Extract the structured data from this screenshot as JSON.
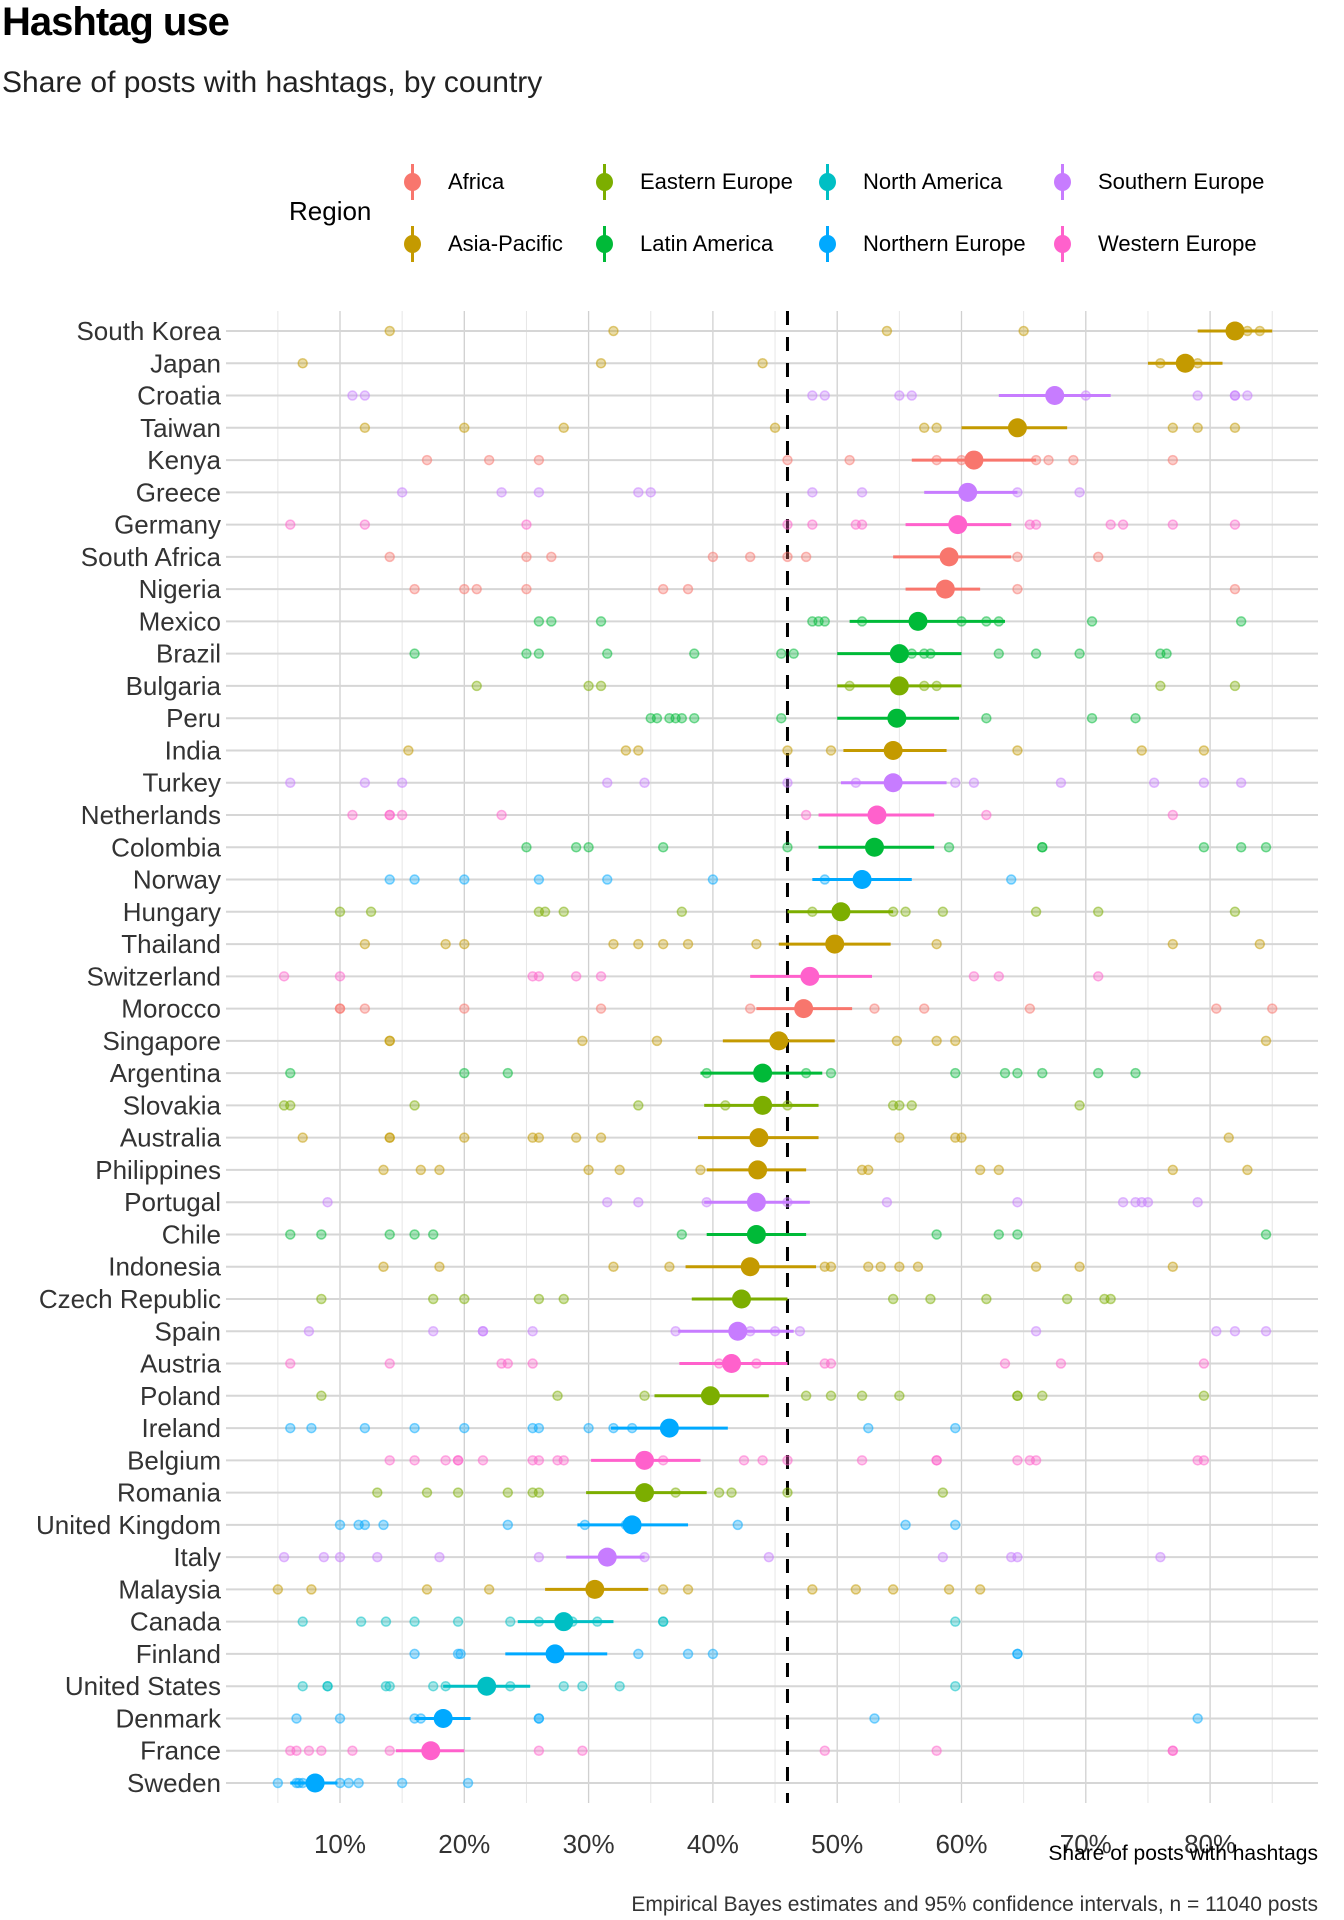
{
  "title": "Hashtag use",
  "subtitle": "Share of posts with hashtags, by country",
  "legend": {
    "title": "Region",
    "items": [
      {
        "label": "Africa",
        "color": "#F8766D"
      },
      {
        "label": "Asia-Pacific",
        "color": "#C49A00"
      },
      {
        "label": "Eastern Europe",
        "color": "#7CAE00"
      },
      {
        "label": "Latin America",
        "color": "#00BA38"
      },
      {
        "label": "North America",
        "color": "#00BFC4"
      },
      {
        "label": "Northern Europe",
        "color": "#00A9FF"
      },
      {
        "label": "Southern Europe",
        "color": "#C77CFF"
      },
      {
        "label": "Western Europe",
        "color": "#FF61CC"
      }
    ]
  },
  "xlabel": "Share of posts with hashtags",
  "caption": "Empirical Bayes estimates and 95% confidence intervals, n = 11040 posts",
  "chart_data": {
    "type": "scatter",
    "title": "Hashtag use",
    "subtitle": "Share of posts with hashtags, by country",
    "xlabel": "Share of posts with hashtags",
    "ylabel": "",
    "xlim": [
      0.04,
      0.86
    ],
    "xticks": [
      0.1,
      0.2,
      0.3,
      0.4,
      0.5,
      0.6,
      0.7,
      0.8
    ],
    "xtick_labels": [
      "10%",
      "20%",
      "30%",
      "40%",
      "50%",
      "60%",
      "70%",
      "80%"
    ],
    "reference_line": {
      "x": 0.46,
      "style": "dashed"
    },
    "grid": true,
    "legend_position": "top",
    "regions": {
      "Africa": "#F8766D",
      "Asia-Pacific": "#C49A00",
      "Eastern Europe": "#7CAE00",
      "Latin America": "#00BA38",
      "North America": "#00BFC4",
      "Northern Europe": "#00A9FF",
      "Southern Europe": "#C77CFF",
      "Western Europe": "#FF61CC"
    },
    "series": [
      {
        "country": "South Korea",
        "region": "Asia-Pacific",
        "estimate": 0.82,
        "lo": 0.79,
        "hi": 0.85,
        "raw": [
          0.14,
          0.32,
          0.54,
          0.65,
          0.83,
          0.84
        ]
      },
      {
        "country": "Japan",
        "region": "Asia-Pacific",
        "estimate": 0.78,
        "lo": 0.75,
        "hi": 0.81,
        "raw": [
          0.07,
          0.31,
          0.44,
          0.76,
          0.79
        ]
      },
      {
        "country": "Croatia",
        "region": "Southern Europe",
        "estimate": 0.675,
        "lo": 0.63,
        "hi": 0.72,
        "raw": [
          0.11,
          0.12,
          0.48,
          0.49,
          0.55,
          0.56,
          0.7,
          0.79,
          0.82,
          0.82,
          0.83
        ]
      },
      {
        "country": "Taiwan",
        "region": "Asia-Pacific",
        "estimate": 0.645,
        "lo": 0.6,
        "hi": 0.685,
        "raw": [
          0.12,
          0.2,
          0.28,
          0.45,
          0.57,
          0.58,
          0.77,
          0.79,
          0.82
        ]
      },
      {
        "country": "Kenya",
        "region": "Africa",
        "estimate": 0.61,
        "lo": 0.56,
        "hi": 0.66,
        "raw": [
          0.17,
          0.22,
          0.26,
          0.46,
          0.51,
          0.58,
          0.6,
          0.66,
          0.67,
          0.69,
          0.77
        ]
      },
      {
        "country": "Greece",
        "region": "Southern Europe",
        "estimate": 0.605,
        "lo": 0.57,
        "hi": 0.645,
        "raw": [
          0.15,
          0.23,
          0.26,
          0.34,
          0.35,
          0.48,
          0.52,
          0.645,
          0.695
        ]
      },
      {
        "country": "Germany",
        "region": "Western Europe",
        "estimate": 0.597,
        "lo": 0.555,
        "hi": 0.64,
        "raw": [
          0.06,
          0.12,
          0.25,
          0.46,
          0.48,
          0.515,
          0.52,
          0.655,
          0.66,
          0.72,
          0.73,
          0.77,
          0.82
        ]
      },
      {
        "country": "South Africa",
        "region": "Africa",
        "estimate": 0.59,
        "lo": 0.545,
        "hi": 0.64,
        "raw": [
          0.14,
          0.25,
          0.27,
          0.4,
          0.43,
          0.46,
          0.475,
          0.645,
          0.71
        ]
      },
      {
        "country": "Nigeria",
        "region": "Africa",
        "estimate": 0.587,
        "lo": 0.555,
        "hi": 0.615,
        "raw": [
          0.16,
          0.2,
          0.21,
          0.25,
          0.36,
          0.38,
          0.59,
          0.645,
          0.82
        ]
      },
      {
        "country": "Mexico",
        "region": "Latin America",
        "estimate": 0.565,
        "lo": 0.51,
        "hi": 0.635,
        "raw": [
          0.26,
          0.27,
          0.31,
          0.48,
          0.485,
          0.49,
          0.52,
          0.6,
          0.62,
          0.63,
          0.705,
          0.825
        ]
      },
      {
        "country": "Brazil",
        "region": "Latin America",
        "estimate": 0.55,
        "lo": 0.5,
        "hi": 0.6,
        "raw": [
          0.16,
          0.25,
          0.26,
          0.315,
          0.385,
          0.455,
          0.465,
          0.56,
          0.57,
          0.575,
          0.63,
          0.66,
          0.695,
          0.76,
          0.765
        ]
      },
      {
        "country": "Bulgaria",
        "region": "Eastern Europe",
        "estimate": 0.55,
        "lo": 0.5,
        "hi": 0.6,
        "raw": [
          0.21,
          0.3,
          0.31,
          0.51,
          0.55,
          0.57,
          0.58,
          0.76,
          0.82
        ]
      },
      {
        "country": "Peru",
        "region": "Latin America",
        "estimate": 0.548,
        "lo": 0.5,
        "hi": 0.598,
        "raw": [
          0.35,
          0.355,
          0.365,
          0.37,
          0.375,
          0.385,
          0.455,
          0.62,
          0.705,
          0.74
        ]
      },
      {
        "country": "India",
        "region": "Asia-Pacific",
        "estimate": 0.545,
        "lo": 0.505,
        "hi": 0.588,
        "raw": [
          0.155,
          0.33,
          0.34,
          0.46,
          0.495,
          0.645,
          0.745,
          0.795
        ]
      },
      {
        "country": "Turkey",
        "region": "Southern Europe",
        "estimate": 0.545,
        "lo": 0.503,
        "hi": 0.588,
        "raw": [
          0.06,
          0.12,
          0.15,
          0.315,
          0.345,
          0.46,
          0.515,
          0.595,
          0.61,
          0.68,
          0.755,
          0.795,
          0.825
        ]
      },
      {
        "country": "Netherlands",
        "region": "Western Europe",
        "estimate": 0.532,
        "lo": 0.485,
        "hi": 0.578,
        "raw": [
          0.11,
          0.14,
          0.14,
          0.15,
          0.23,
          0.475,
          0.62,
          0.77
        ]
      },
      {
        "country": "Colombia",
        "region": "Latin America",
        "estimate": 0.53,
        "lo": 0.485,
        "hi": 0.578,
        "raw": [
          0.25,
          0.29,
          0.3,
          0.36,
          0.46,
          0.59,
          0.665,
          0.665,
          0.795,
          0.825,
          0.845
        ]
      },
      {
        "country": "Norway",
        "region": "Northern Europe",
        "estimate": 0.52,
        "lo": 0.48,
        "hi": 0.56,
        "raw": [
          0.14,
          0.16,
          0.2,
          0.26,
          0.315,
          0.4,
          0.49,
          0.64
        ]
      },
      {
        "country": "Hungary",
        "region": "Eastern Europe",
        "estimate": 0.503,
        "lo": 0.46,
        "hi": 0.545,
        "raw": [
          0.1,
          0.125,
          0.26,
          0.265,
          0.28,
          0.375,
          0.48,
          0.545,
          0.555,
          0.585,
          0.66,
          0.71,
          0.82
        ]
      },
      {
        "country": "Thailand",
        "region": "Asia-Pacific",
        "estimate": 0.498,
        "lo": 0.453,
        "hi": 0.543,
        "raw": [
          0.12,
          0.185,
          0.2,
          0.32,
          0.34,
          0.36,
          0.38,
          0.435,
          0.58,
          0.77,
          0.84
        ]
      },
      {
        "country": "Switzerland",
        "region": "Western Europe",
        "estimate": 0.478,
        "lo": 0.43,
        "hi": 0.528,
        "raw": [
          0.055,
          0.1,
          0.255,
          0.26,
          0.29,
          0.31,
          0.61,
          0.63,
          0.71
        ]
      },
      {
        "country": "Morocco",
        "region": "Africa",
        "estimate": 0.473,
        "lo": 0.435,
        "hi": 0.512,
        "raw": [
          0.1,
          0.1,
          0.12,
          0.2,
          0.31,
          0.43,
          0.53,
          0.57,
          0.655,
          0.805,
          0.85
        ]
      },
      {
        "country": "Singapore",
        "region": "Asia-Pacific",
        "estimate": 0.453,
        "lo": 0.408,
        "hi": 0.498,
        "raw": [
          0.14,
          0.14,
          0.295,
          0.355,
          0.548,
          0.58,
          0.595,
          0.845
        ]
      },
      {
        "country": "Argentina",
        "region": "Latin America",
        "estimate": 0.44,
        "lo": 0.39,
        "hi": 0.488,
        "raw": [
          0.06,
          0.2,
          0.235,
          0.395,
          0.475,
          0.495,
          0.595,
          0.635,
          0.645,
          0.665,
          0.71,
          0.74
        ]
      },
      {
        "country": "Slovakia",
        "region": "Eastern Europe",
        "estimate": 0.44,
        "lo": 0.393,
        "hi": 0.485,
        "raw": [
          0.055,
          0.06,
          0.16,
          0.34,
          0.41,
          0.46,
          0.545,
          0.55,
          0.56,
          0.695
        ]
      },
      {
        "country": "Australia",
        "region": "Asia-Pacific",
        "estimate": 0.437,
        "lo": 0.388,
        "hi": 0.485,
        "raw": [
          0.07,
          0.14,
          0.14,
          0.2,
          0.255,
          0.26,
          0.29,
          0.31,
          0.55,
          0.595,
          0.6,
          0.815
        ]
      },
      {
        "country": "Philippines",
        "region": "Asia-Pacific",
        "estimate": 0.436,
        "lo": 0.395,
        "hi": 0.475,
        "raw": [
          0.135,
          0.165,
          0.18,
          0.3,
          0.325,
          0.39,
          0.52,
          0.525,
          0.615,
          0.63,
          0.77,
          0.83
        ]
      },
      {
        "country": "Portugal",
        "region": "Southern Europe",
        "estimate": 0.435,
        "lo": 0.393,
        "hi": 0.478,
        "raw": [
          0.09,
          0.315,
          0.34,
          0.395,
          0.46,
          0.54,
          0.645,
          0.73,
          0.74,
          0.745,
          0.75,
          0.79
        ]
      },
      {
        "country": "Chile",
        "region": "Latin America",
        "estimate": 0.435,
        "lo": 0.395,
        "hi": 0.475,
        "raw": [
          0.06,
          0.085,
          0.14,
          0.16,
          0.175,
          0.375,
          0.58,
          0.63,
          0.645,
          0.845
        ]
      },
      {
        "country": "Indonesia",
        "region": "Asia-Pacific",
        "estimate": 0.43,
        "lo": 0.378,
        "hi": 0.483,
        "raw": [
          0.135,
          0.18,
          0.32,
          0.365,
          0.49,
          0.495,
          0.525,
          0.535,
          0.55,
          0.565,
          0.66,
          0.695,
          0.77
        ]
      },
      {
        "country": "Czech Republic",
        "region": "Eastern Europe",
        "estimate": 0.423,
        "lo": 0.383,
        "hi": 0.46,
        "raw": [
          0.085,
          0.175,
          0.2,
          0.26,
          0.28,
          0.545,
          0.575,
          0.62,
          0.685,
          0.715,
          0.72
        ]
      },
      {
        "country": "Spain",
        "region": "Southern Europe",
        "estimate": 0.42,
        "lo": 0.372,
        "hi": 0.465,
        "raw": [
          0.075,
          0.175,
          0.215,
          0.215,
          0.255,
          0.37,
          0.43,
          0.45,
          0.47,
          0.66,
          0.805,
          0.82,
          0.845
        ]
      },
      {
        "country": "Austria",
        "region": "Western Europe",
        "estimate": 0.415,
        "lo": 0.373,
        "hi": 0.46,
        "raw": [
          0.06,
          0.14,
          0.23,
          0.235,
          0.255,
          0.405,
          0.435,
          0.49,
          0.495,
          0.635,
          0.68,
          0.795
        ]
      },
      {
        "country": "Poland",
        "region": "Eastern Europe",
        "estimate": 0.398,
        "lo": 0.353,
        "hi": 0.445,
        "raw": [
          0.085,
          0.275,
          0.345,
          0.475,
          0.495,
          0.52,
          0.55,
          0.645,
          0.645,
          0.665,
          0.795
        ]
      },
      {
        "country": "Ireland",
        "region": "Northern Europe",
        "estimate": 0.365,
        "lo": 0.318,
        "hi": 0.412,
        "raw": [
          0.06,
          0.077,
          0.12,
          0.16,
          0.2,
          0.255,
          0.26,
          0.3,
          0.32,
          0.335,
          0.365,
          0.525,
          0.595
        ]
      },
      {
        "country": "Belgium",
        "region": "Western Europe",
        "estimate": 0.345,
        "lo": 0.302,
        "hi": 0.39,
        "raw": [
          0.14,
          0.16,
          0.185,
          0.195,
          0.195,
          0.215,
          0.255,
          0.26,
          0.275,
          0.28,
          0.36,
          0.425,
          0.44,
          0.46,
          0.52,
          0.58,
          0.58,
          0.645,
          0.655,
          0.66,
          0.79,
          0.795
        ]
      },
      {
        "country": "Romania",
        "region": "Eastern Europe",
        "estimate": 0.345,
        "lo": 0.298,
        "hi": 0.395,
        "raw": [
          0.13,
          0.17,
          0.195,
          0.235,
          0.255,
          0.26,
          0.37,
          0.405,
          0.415,
          0.46,
          0.585
        ]
      },
      {
        "country": "United Kingdom",
        "region": "Northern Europe",
        "estimate": 0.335,
        "lo": 0.291,
        "hi": 0.38,
        "raw": [
          0.1,
          0.115,
          0.12,
          0.135,
          0.235,
          0.297,
          0.33,
          0.42,
          0.555,
          0.595
        ]
      },
      {
        "country": "Italy",
        "region": "Southern Europe",
        "estimate": 0.315,
        "lo": 0.282,
        "hi": 0.345,
        "raw": [
          0.055,
          0.087,
          0.1,
          0.13,
          0.18,
          0.26,
          0.345,
          0.445,
          0.585,
          0.64,
          0.645,
          0.76
        ]
      },
      {
        "country": "Malaysia",
        "region": "Asia-Pacific",
        "estimate": 0.305,
        "lo": 0.265,
        "hi": 0.348,
        "raw": [
          0.05,
          0.077,
          0.17,
          0.22,
          0.36,
          0.38,
          0.48,
          0.515,
          0.545,
          0.59,
          0.615
        ]
      },
      {
        "country": "Canada",
        "region": "North America",
        "estimate": 0.28,
        "lo": 0.243,
        "hi": 0.32,
        "raw": [
          0.07,
          0.117,
          0.137,
          0.16,
          0.195,
          0.237,
          0.26,
          0.287,
          0.307,
          0.36,
          0.36,
          0.595
        ]
      },
      {
        "country": "Finland",
        "region": "Northern Europe",
        "estimate": 0.273,
        "lo": 0.233,
        "hi": 0.315,
        "raw": [
          0.16,
          0.195,
          0.197,
          0.34,
          0.38,
          0.4,
          0.645,
          0.645
        ]
      },
      {
        "country": "United States",
        "region": "North America",
        "estimate": 0.218,
        "lo": 0.183,
        "hi": 0.253,
        "raw": [
          0.07,
          0.09,
          0.09,
          0.137,
          0.14,
          0.175,
          0.185,
          0.237,
          0.28,
          0.295,
          0.325,
          0.595
        ]
      },
      {
        "country": "Denmark",
        "region": "Northern Europe",
        "estimate": 0.183,
        "lo": 0.16,
        "hi": 0.205,
        "raw": [
          0.065,
          0.1,
          0.16,
          0.165,
          0.26,
          0.26,
          0.53,
          0.79
        ]
      },
      {
        "country": "France",
        "region": "Western Europe",
        "estimate": 0.173,
        "lo": 0.145,
        "hi": 0.2,
        "raw": [
          0.06,
          0.065,
          0.075,
          0.085,
          0.11,
          0.14,
          0.26,
          0.295,
          0.49,
          0.58,
          0.77,
          0.77
        ]
      },
      {
        "country": "Sweden",
        "region": "Northern Europe",
        "estimate": 0.08,
        "lo": 0.06,
        "hi": 0.098,
        "raw": [
          0.05,
          0.065,
          0.067,
          0.07,
          0.1,
          0.107,
          0.115,
          0.15,
          0.203
        ]
      }
    ]
  }
}
